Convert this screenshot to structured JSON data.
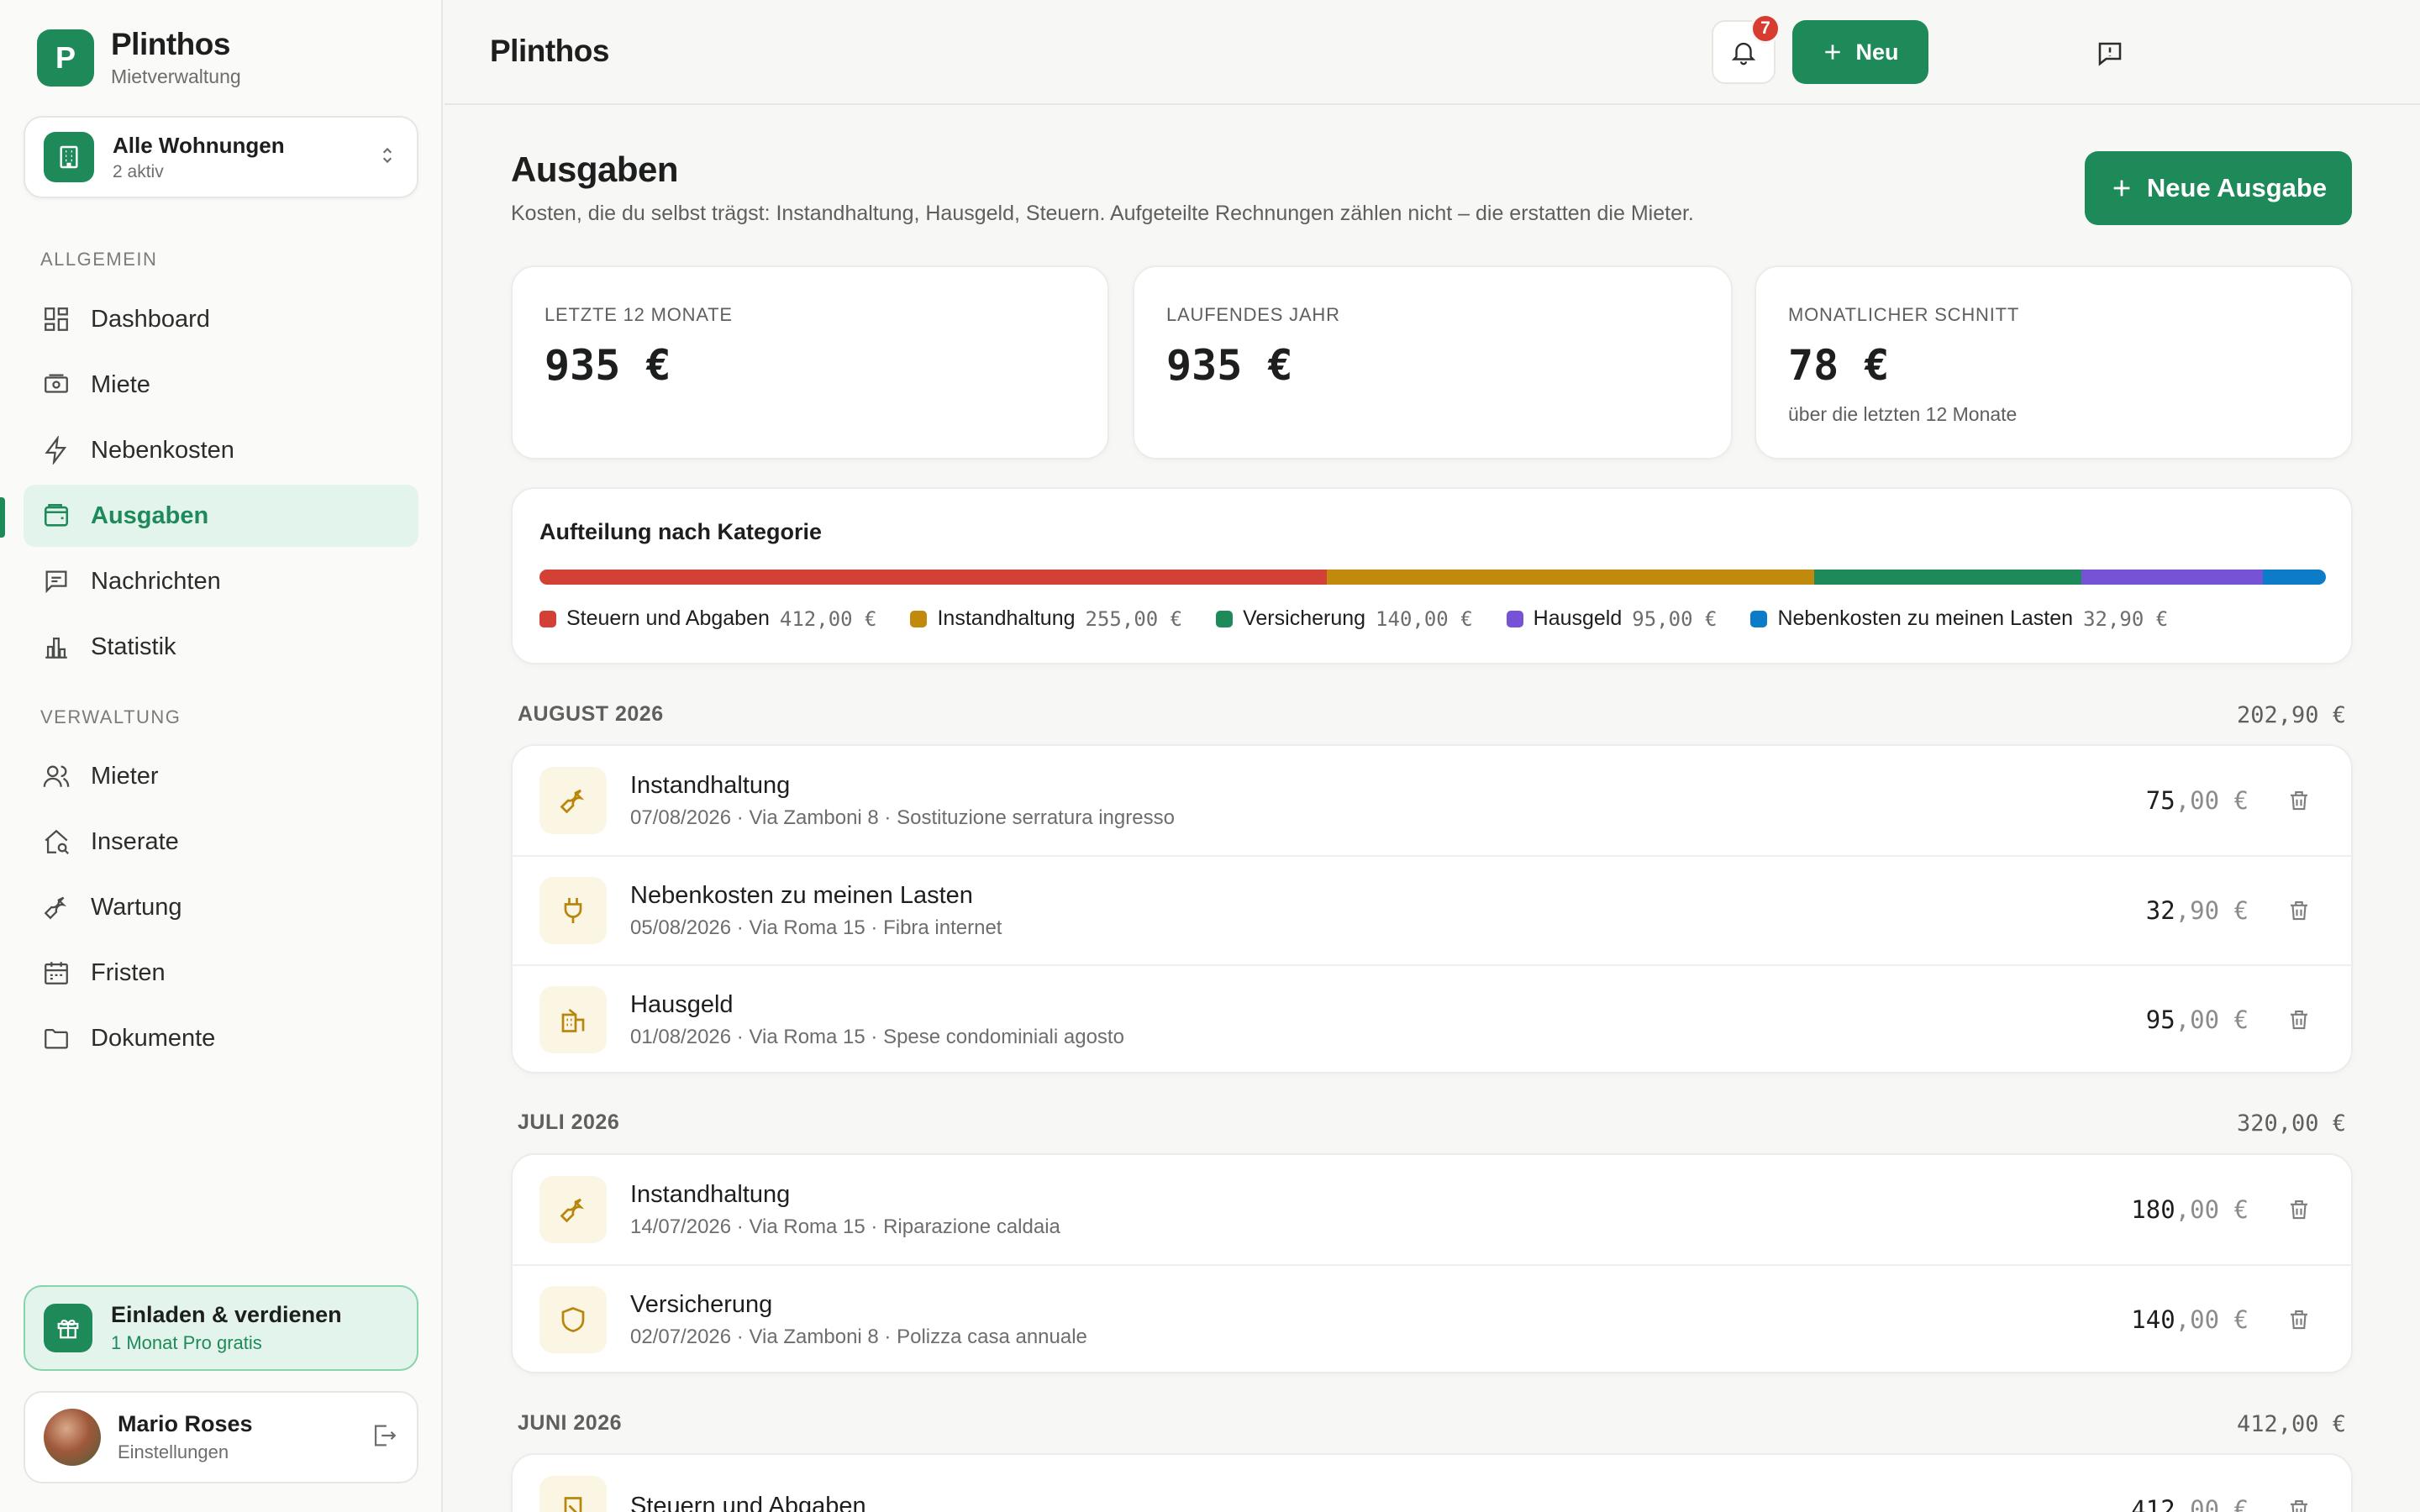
{
  "app": {
    "name": "Plinthos",
    "subtitle": "Mietverwaltung",
    "logo_letter": "P"
  },
  "switcher": {
    "title": "Alle Wohnungen",
    "subtitle": "2 aktiv"
  },
  "sidebar": {
    "sections": [
      {
        "label": "ALLGEMEIN"
      },
      {
        "label": "VERWALTUNG"
      }
    ],
    "items": [
      {
        "label": "Dashboard",
        "icon": "dashboard-icon"
      },
      {
        "label": "Miete",
        "icon": "money-icon"
      },
      {
        "label": "Nebenkosten",
        "icon": "bolt-icon"
      },
      {
        "label": "Ausgaben",
        "icon": "wallet-icon",
        "active": true
      },
      {
        "label": "Nachrichten",
        "icon": "message-icon"
      },
      {
        "label": "Statistik",
        "icon": "chart-icon"
      },
      {
        "label": "Mieter",
        "icon": "users-icon"
      },
      {
        "label": "Inserate",
        "icon": "house-search-icon"
      },
      {
        "label": "Wartung",
        "icon": "wrench-icon"
      },
      {
        "label": "Fristen",
        "icon": "calendar-icon"
      },
      {
        "label": "Dokumente",
        "icon": "folder-icon"
      }
    ]
  },
  "invite": {
    "title": "Einladen & verdienen",
    "subtitle": "1 Monat Pro gratis"
  },
  "user": {
    "name": "Mario Roses",
    "subtitle": "Einstellungen"
  },
  "topbar": {
    "title": "Plinthos",
    "notifications": "7",
    "new_label": "Neu"
  },
  "page": {
    "title": "Ausgaben",
    "subtitle": "Kosten, die du selbst trägst: Instandhaltung, Hausgeld, Steuern. Aufgeteilte Rechnungen zählen nicht – die erstatten die Mieter.",
    "add_label": "Neue Ausgabe"
  },
  "stats": [
    {
      "label": "LETZTE 12 MONATE",
      "value": "935 €",
      "note": ""
    },
    {
      "label": "LAUFENDES JAHR",
      "value": "935 €",
      "note": ""
    },
    {
      "label": "MONATLICHER SCHNITT",
      "value": "78 €",
      "note": "über die letzten 12 Monate"
    }
  ],
  "categories": {
    "title": "Aufteilung nach Kategorie",
    "items": [
      {
        "name": "Steuern und Abgaben",
        "amount": 412.0,
        "amount_label": "412,00 €",
        "color": "#d34035"
      },
      {
        "name": "Instandhaltung",
        "amount": 255.0,
        "amount_label": "255,00 €",
        "color": "#c28a0c"
      },
      {
        "name": "Versicherung",
        "amount": 140.0,
        "amount_label": "140,00 €",
        "color": "#1e8a5a"
      },
      {
        "name": "Hausgeld",
        "amount": 95.0,
        "amount_label": "95,00 €",
        "color": "#7552d6"
      },
      {
        "name": "Nebenkosten zu meinen Lasten",
        "amount": 32.9,
        "amount_label": "32,90 €",
        "color": "#0c7cc9"
      }
    ]
  },
  "months": [
    {
      "label": "AUGUST 2026",
      "total": "202,90 €",
      "rows": [
        {
          "title": "Instandhaltung",
          "sub": "07/08/2026 · Via Zamboni 8 · Sostituzione serratura ingresso",
          "int": "75",
          "dec": ",00 €",
          "icon": "wrench-icon"
        },
        {
          "title": "Nebenkosten zu meinen Lasten",
          "sub": "05/08/2026 · Via Roma 15 · Fibra internet",
          "int": "32",
          "dec": ",90 €",
          "icon": "plug-icon"
        },
        {
          "title": "Hausgeld",
          "sub": "01/08/2026 · Via Roma 15 · Spese condominiali agosto",
          "int": "95",
          "dec": ",00 €",
          "icon": "building-icon"
        }
      ]
    },
    {
      "label": "JULI 2026",
      "total": "320,00 €",
      "rows": [
        {
          "title": "Instandhaltung",
          "sub": "14/07/2026 · Via Roma 15 · Riparazione caldaia",
          "int": "180",
          "dec": ",00 €",
          "icon": "wrench-icon"
        },
        {
          "title": "Versicherung",
          "sub": "02/07/2026 · Via Zamboni 8 · Polizza casa annuale",
          "int": "140",
          "dec": ",00 €",
          "icon": "shield-icon"
        }
      ]
    },
    {
      "label": "JUNI 2026",
      "total": "412,00 €",
      "rows": [
        {
          "title": "Steuern und Abgaben",
          "sub": "",
          "int": "412",
          "dec": ",00 €",
          "icon": "receipt-icon"
        }
      ]
    }
  ]
}
